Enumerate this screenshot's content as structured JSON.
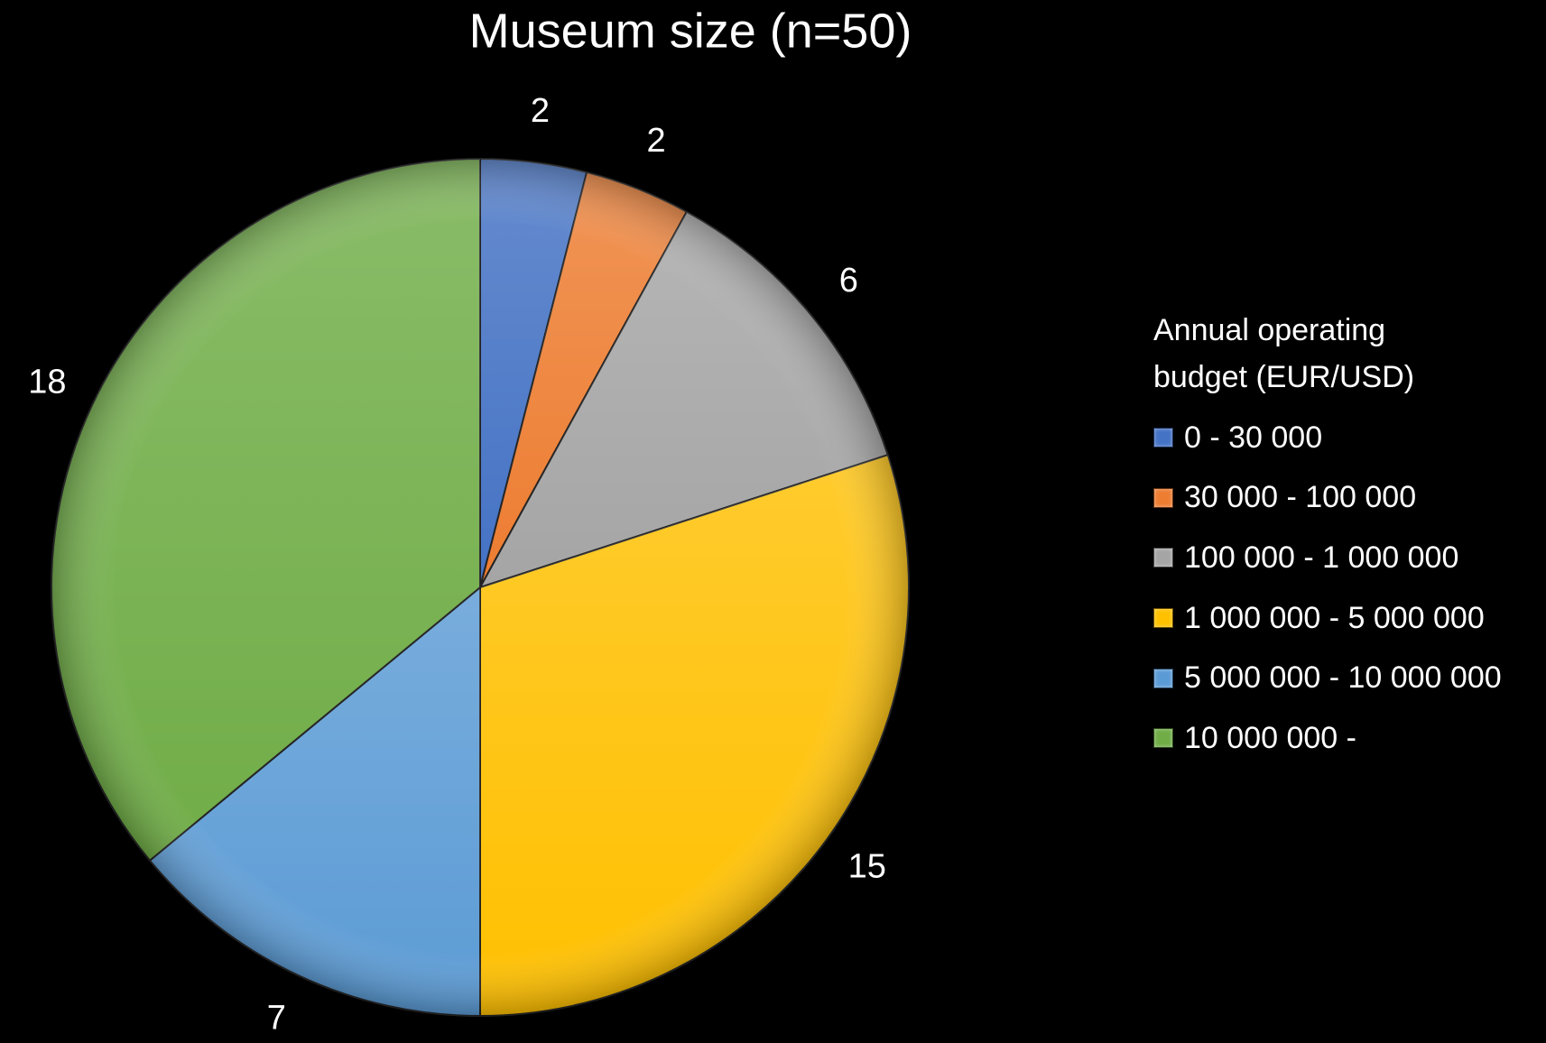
{
  "chart_data": {
    "type": "pie",
    "title": "Museum size (n=50)",
    "legend_title": "Annual operating budget (EUR/USD)",
    "categories": [
      "0 - 30 000",
      "30 000 - 100 000",
      "100 000 - 1 000 000",
      "1 000 000 - 5 000 000",
      "5 000 000 - 10 000 000",
      "10 000 000 -"
    ],
    "values": [
      2,
      2,
      6,
      15,
      7,
      18
    ],
    "colors": [
      "#4472c4",
      "#ed7d31",
      "#a5a5a5",
      "#ffc000",
      "#5b9bd5",
      "#70ad47"
    ],
    "legend": "right"
  }
}
